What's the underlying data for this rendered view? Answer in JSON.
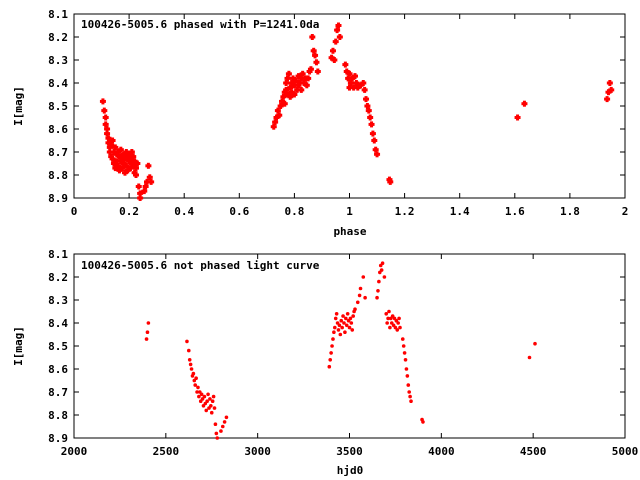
{
  "chart_data": [
    {
      "type": "scatter",
      "title": "100426-5005.6 phased with P=1241.0da",
      "xlabel": "phase",
      "ylabel": "I[mag]",
      "xlim": [
        0,
        2
      ],
      "ylim": [
        8.1,
        8.9
      ],
      "y_inverted": true,
      "grid": false,
      "marker": "cross",
      "color": "#ff0000",
      "x_ticks": [
        "0",
        "0.2",
        "0.4",
        "0.6",
        "0.8",
        "1",
        "1.2",
        "1.4",
        "1.6",
        "1.8",
        "2"
      ],
      "y_ticks": [
        "8.1",
        "8.2",
        "8.3",
        "8.4",
        "8.5",
        "8.6",
        "8.7",
        "8.8",
        "8.9"
      ],
      "points": [
        [
          0.105,
          8.48
        ],
        [
          0.11,
          8.52
        ],
        [
          0.115,
          8.55
        ],
        [
          0.115,
          8.58
        ],
        [
          0.12,
          8.6
        ],
        [
          0.12,
          8.62
        ],
        [
          0.125,
          8.64
        ],
        [
          0.125,
          8.66
        ],
        [
          0.13,
          8.68
        ],
        [
          0.13,
          8.7
        ],
        [
          0.135,
          8.67
        ],
        [
          0.135,
          8.72
        ],
        [
          0.14,
          8.65
        ],
        [
          0.14,
          8.73
        ],
        [
          0.145,
          8.7
        ],
        [
          0.145,
          8.75
        ],
        [
          0.15,
          8.68
        ],
        [
          0.15,
          8.77
        ],
        [
          0.155,
          8.71
        ],
        [
          0.155,
          8.74
        ],
        [
          0.16,
          8.7
        ],
        [
          0.16,
          8.76
        ],
        [
          0.165,
          8.72
        ],
        [
          0.165,
          8.78
        ],
        [
          0.17,
          8.69
        ],
        [
          0.17,
          8.74
        ],
        [
          0.175,
          8.72
        ],
        [
          0.175,
          8.77
        ],
        [
          0.18,
          8.71
        ],
        [
          0.18,
          8.75
        ],
        [
          0.185,
          8.73
        ],
        [
          0.185,
          8.79
        ],
        [
          0.19,
          8.7
        ],
        [
          0.19,
          8.76
        ],
        [
          0.195,
          8.72
        ],
        [
          0.195,
          8.78
        ],
        [
          0.2,
          8.71
        ],
        [
          0.2,
          8.74
        ],
        [
          0.205,
          8.73
        ],
        [
          0.205,
          8.77
        ],
        [
          0.21,
          8.7
        ],
        [
          0.21,
          8.75
        ],
        [
          0.215,
          8.72
        ],
        [
          0.215,
          8.76
        ],
        [
          0.22,
          8.74
        ],
        [
          0.22,
          8.79
        ],
        [
          0.225,
          8.77
        ],
        [
          0.225,
          8.8
        ],
        [
          0.23,
          8.75
        ],
        [
          0.235,
          8.85
        ],
        [
          0.24,
          8.88
        ],
        [
          0.24,
          8.9
        ],
        [
          0.255,
          8.87
        ],
        [
          0.26,
          8.85
        ],
        [
          0.265,
          8.83
        ],
        [
          0.27,
          8.76
        ],
        [
          0.275,
          8.81
        ],
        [
          0.28,
          8.83
        ],
        [
          0.725,
          8.59
        ],
        [
          0.73,
          8.57
        ],
        [
          0.735,
          8.55
        ],
        [
          0.74,
          8.52
        ],
        [
          0.745,
          8.54
        ],
        [
          0.75,
          8.5
        ],
        [
          0.755,
          8.48
        ],
        [
          0.76,
          8.46
        ],
        [
          0.765,
          8.44
        ],
        [
          0.765,
          8.49
        ],
        [
          0.77,
          8.4
        ],
        [
          0.77,
          8.43
        ],
        [
          0.775,
          8.38
        ],
        [
          0.775,
          8.45
        ],
        [
          0.78,
          8.36
        ],
        [
          0.785,
          8.42
        ],
        [
          0.785,
          8.46
        ],
        [
          0.79,
          8.4
        ],
        [
          0.79,
          8.44
        ],
        [
          0.795,
          8.38
        ],
        [
          0.8,
          8.41
        ],
        [
          0.8,
          8.45
        ],
        [
          0.805,
          8.39
        ],
        [
          0.81,
          8.43
        ],
        [
          0.815,
          8.37
        ],
        [
          0.815,
          8.41
        ],
        [
          0.82,
          8.4
        ],
        [
          0.825,
          8.38
        ],
        [
          0.825,
          8.43
        ],
        [
          0.83,
          8.36
        ],
        [
          0.835,
          8.4
        ],
        [
          0.84,
          8.38
        ],
        [
          0.845,
          8.41
        ],
        [
          0.85,
          8.38
        ],
        [
          0.855,
          8.35
        ],
        [
          0.86,
          8.34
        ],
        [
          0.865,
          8.2
        ],
        [
          0.87,
          8.26
        ],
        [
          0.875,
          8.28
        ],
        [
          0.88,
          8.31
        ],
        [
          0.885,
          8.35
        ],
        [
          0.935,
          8.29
        ],
        [
          0.94,
          8.26
        ],
        [
          0.945,
          8.3
        ],
        [
          0.95,
          8.22
        ],
        [
          0.955,
          8.17
        ],
        [
          0.96,
          8.15
        ],
        [
          0.965,
          8.2
        ],
        [
          0.985,
          8.32
        ],
        [
          0.99,
          8.35
        ],
        [
          0.995,
          8.38
        ],
        [
          1.0,
          8.36
        ],
        [
          1.0,
          8.42
        ],
        [
          1.005,
          8.4
        ],
        [
          1.01,
          8.38
        ],
        [
          1.015,
          8.42
        ],
        [
          1.02,
          8.37
        ],
        [
          1.025,
          8.4
        ],
        [
          1.03,
          8.42
        ],
        [
          1.04,
          8.41
        ],
        [
          1.05,
          8.4
        ],
        [
          1.055,
          8.43
        ],
        [
          1.06,
          8.47
        ],
        [
          1.065,
          8.5
        ],
        [
          1.07,
          8.52
        ],
        [
          1.075,
          8.55
        ],
        [
          1.08,
          8.58
        ],
        [
          1.085,
          8.62
        ],
        [
          1.09,
          8.65
        ],
        [
          1.095,
          8.69
        ],
        [
          1.1,
          8.71
        ],
        [
          1.145,
          8.82
        ],
        [
          1.148,
          8.83
        ],
        [
          1.61,
          8.55
        ],
        [
          1.635,
          8.49
        ],
        [
          1.935,
          8.47
        ],
        [
          1.94,
          8.44
        ],
        [
          1.945,
          8.4
        ],
        [
          1.95,
          8.43
        ]
      ]
    },
    {
      "type": "scatter",
      "title": "100426-5005.6 not phased light curve",
      "xlabel": "hjd0",
      "ylabel": "I[mag]",
      "xlim": [
        2000,
        5000
      ],
      "ylim": [
        8.1,
        8.9
      ],
      "y_inverted": true,
      "grid": false,
      "marker": "dot",
      "color": "#ff0000",
      "x_ticks": [
        "2000",
        "2500",
        "3000",
        "3500",
        "4000",
        "4500",
        "5000"
      ],
      "y_ticks": [
        "8.1",
        "8.2",
        "8.3",
        "8.4",
        "8.5",
        "8.6",
        "8.7",
        "8.8",
        "8.9"
      ],
      "points": [
        [
          2395,
          8.47
        ],
        [
          2400,
          8.44
        ],
        [
          2405,
          8.4
        ],
        [
          2615,
          8.48
        ],
        [
          2625,
          8.52
        ],
        [
          2630,
          8.56
        ],
        [
          2635,
          8.58
        ],
        [
          2640,
          8.6
        ],
        [
          2645,
          8.63
        ],
        [
          2650,
          8.62
        ],
        [
          2655,
          8.65
        ],
        [
          2660,
          8.67
        ],
        [
          2665,
          8.64
        ],
        [
          2670,
          8.7
        ],
        [
          2675,
          8.68
        ],
        [
          2680,
          8.72
        ],
        [
          2685,
          8.7
        ],
        [
          2690,
          8.74
        ],
        [
          2695,
          8.71
        ],
        [
          2700,
          8.73
        ],
        [
          2705,
          8.76
        ],
        [
          2710,
          8.72
        ],
        [
          2715,
          8.75
        ],
        [
          2720,
          8.78
        ],
        [
          2725,
          8.74
        ],
        [
          2730,
          8.71
        ],
        [
          2735,
          8.77
        ],
        [
          2740,
          8.73
        ],
        [
          2745,
          8.76
        ],
        [
          2750,
          8.79
        ],
        [
          2755,
          8.74
        ],
        [
          2760,
          8.72
        ],
        [
          2765,
          8.77
        ],
        [
          2770,
          8.84
        ],
        [
          2775,
          8.88
        ],
        [
          2780,
          8.9
        ],
        [
          2800,
          8.87
        ],
        [
          2810,
          8.85
        ],
        [
          2820,
          8.83
        ],
        [
          2830,
          8.81
        ],
        [
          3390,
          8.59
        ],
        [
          3395,
          8.56
        ],
        [
          3400,
          8.53
        ],
        [
          3405,
          8.5
        ],
        [
          3410,
          8.47
        ],
        [
          3415,
          8.44
        ],
        [
          3420,
          8.42
        ],
        [
          3425,
          8.38
        ],
        [
          3430,
          8.36
        ],
        [
          3435,
          8.4
        ],
        [
          3440,
          8.43
        ],
        [
          3445,
          8.41
        ],
        [
          3450,
          8.45
        ],
        [
          3455,
          8.39
        ],
        [
          3460,
          8.42
        ],
        [
          3465,
          8.37
        ],
        [
          3470,
          8.4
        ],
        [
          3475,
          8.44
        ],
        [
          3480,
          8.38
        ],
        [
          3485,
          8.41
        ],
        [
          3490,
          8.36
        ],
        [
          3495,
          8.39
        ],
        [
          3500,
          8.42
        ],
        [
          3505,
          8.38
        ],
        [
          3510,
          8.4
        ],
        [
          3515,
          8.43
        ],
        [
          3520,
          8.37
        ],
        [
          3525,
          8.35
        ],
        [
          3530,
          8.34
        ],
        [
          3545,
          8.31
        ],
        [
          3555,
          8.28
        ],
        [
          3560,
          8.25
        ],
        [
          3575,
          8.2
        ],
        [
          3585,
          8.29
        ],
        [
          3650,
          8.29
        ],
        [
          3655,
          8.26
        ],
        [
          3660,
          8.22
        ],
        [
          3665,
          8.18
        ],
        [
          3670,
          8.15
        ],
        [
          3675,
          8.17
        ],
        [
          3680,
          8.14
        ],
        [
          3690,
          8.2
        ],
        [
          3700,
          8.36
        ],
        [
          3705,
          8.4
        ],
        [
          3710,
          8.38
        ],
        [
          3715,
          8.35
        ],
        [
          3720,
          8.42
        ],
        [
          3725,
          8.38
        ],
        [
          3730,
          8.4
        ],
        [
          3735,
          8.37
        ],
        [
          3740,
          8.41
        ],
        [
          3745,
          8.38
        ],
        [
          3750,
          8.42
        ],
        [
          3755,
          8.39
        ],
        [
          3760,
          8.43
        ],
        [
          3765,
          8.4
        ],
        [
          3770,
          8.38
        ],
        [
          3775,
          8.42
        ],
        [
          3790,
          8.47
        ],
        [
          3795,
          8.5
        ],
        [
          3800,
          8.53
        ],
        [
          3805,
          8.56
        ],
        [
          3810,
          8.6
        ],
        [
          3815,
          8.63
        ],
        [
          3820,
          8.67
        ],
        [
          3825,
          8.7
        ],
        [
          3830,
          8.72
        ],
        [
          3835,
          8.74
        ],
        [
          3895,
          8.82
        ],
        [
          3900,
          8.83
        ],
        [
          4480,
          8.55
        ],
        [
          4510,
          8.49
        ]
      ]
    }
  ]
}
